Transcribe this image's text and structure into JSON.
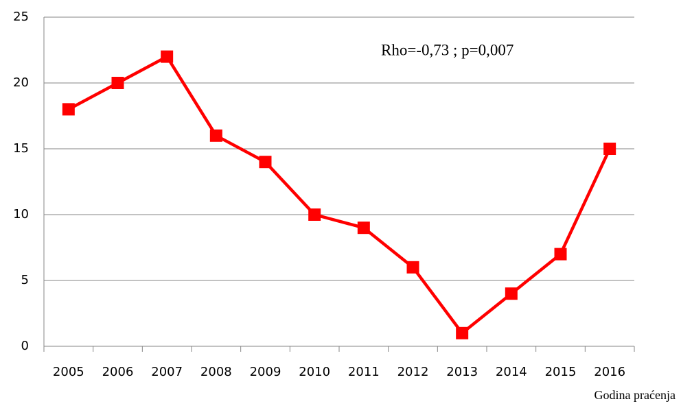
{
  "chart_data": {
    "type": "line",
    "x_label": "Godina praćenja",
    "annotation": "Rho=-0,73 ; p=0,007",
    "categories": [
      "2005",
      "2006",
      "2007",
      "2008",
      "2009",
      "2010",
      "2011",
      "2012",
      "2013",
      "2014",
      "2015",
      "2016"
    ],
    "series": [
      {
        "color": "#ff0000",
        "values": [
          18,
          20,
          22,
          16,
          14,
          10,
          9,
          6,
          1,
          4,
          7,
          15
        ]
      }
    ],
    "ylim": [
      0,
      25
    ],
    "yticks": [
      0,
      5,
      10,
      15,
      20,
      25
    ],
    "grid": true
  }
}
